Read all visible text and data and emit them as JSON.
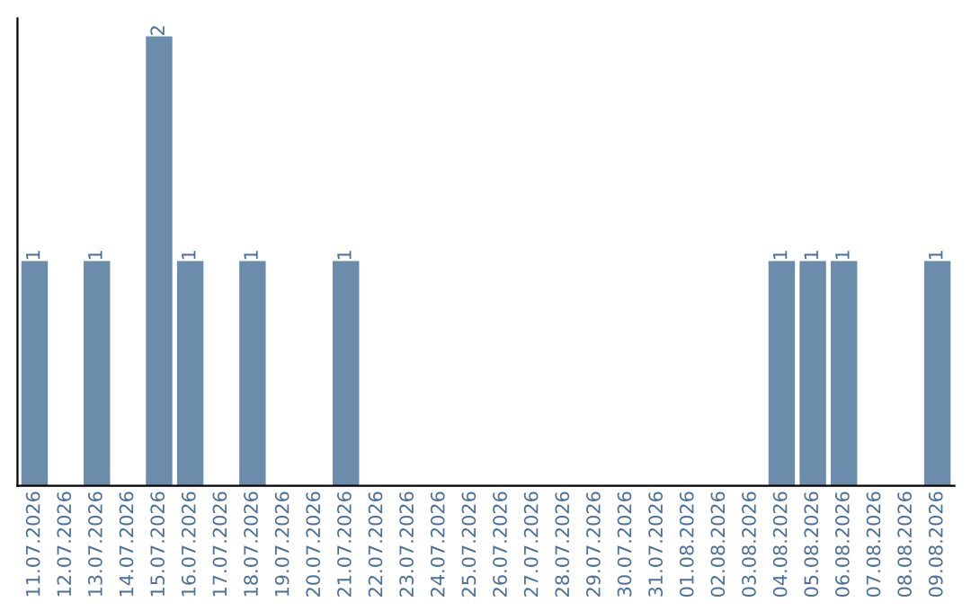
{
  "chart_data": {
    "type": "bar",
    "categories": [
      "11.07.2026",
      "12.07.2026",
      "13.07.2026",
      "14.07.2026",
      "15.07.2026",
      "16.07.2026",
      "17.07.2026",
      "18.07.2026",
      "19.07.2026",
      "20.07.2026",
      "21.07.2026",
      "22.07.2026",
      "23.07.2026",
      "24.07.2026",
      "25.07.2026",
      "26.07.2026",
      "27.07.2026",
      "28.07.2026",
      "29.07.2026",
      "30.07.2026",
      "31.07.2026",
      "01.08.2026",
      "02.08.2026",
      "03.08.2026",
      "04.08.2026",
      "05.08.2026",
      "06.08.2026",
      "07.08.2026",
      "08.08.2026",
      "09.08.2026"
    ],
    "values": [
      1,
      0,
      1,
      0,
      2,
      1,
      0,
      1,
      0,
      0,
      1,
      0,
      0,
      0,
      0,
      0,
      0,
      0,
      0,
      0,
      0,
      0,
      0,
      0,
      1,
      1,
      1,
      0,
      0,
      1
    ],
    "value_labels": [
      "1",
      null,
      "1",
      null,
      "2",
      "1",
      null,
      "1",
      null,
      null,
      "1",
      null,
      null,
      null,
      null,
      null,
      null,
      null,
      null,
      null,
      null,
      null,
      null,
      null,
      "1",
      "1",
      "1",
      null,
      null,
      "1"
    ],
    "color": "#6b8caa",
    "grid": false
  }
}
